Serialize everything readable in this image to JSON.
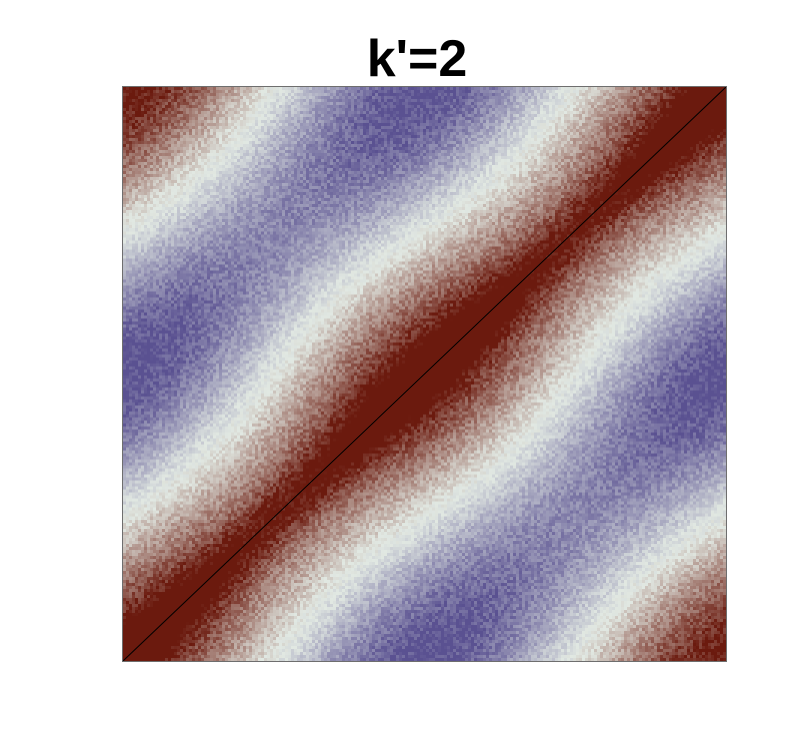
{
  "chart_data": {
    "type": "heatmap",
    "title": "k'=2",
    "xlabel": "",
    "ylabel": "",
    "grid": false,
    "legend": "none",
    "colormap": {
      "negative": "#5a5191",
      "zero": "#e1e8e2",
      "positive": "#6b1a0e",
      "peak": "#8b0000"
    },
    "value_range": [
      -1,
      1
    ],
    "diagonal_line_color": "#000000"
  }
}
